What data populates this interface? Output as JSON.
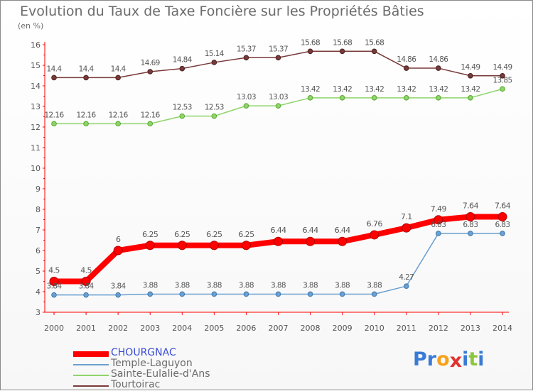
{
  "title": "Evolution du Taux de Taxe Foncière sur les Propriétés Bâties",
  "unit_label": "(en %)",
  "logo": {
    "text": "Proxiti",
    "letters": [
      "P",
      "r",
      "o",
      "x",
      "i",
      "t",
      "i"
    ],
    "colors": [
      "#3a7bd5",
      "#3a7bd5",
      "#f7a21b",
      "#e0322f",
      "#3a7bd5",
      "#8cc63f",
      "#3a7bd5"
    ]
  },
  "chart_data": {
    "type": "line",
    "title": "Evolution du Taux de Taxe Foncière sur les Propriétés Bâties",
    "ylabel": "(en %)",
    "xlabel": "",
    "x": [
      2000,
      2001,
      2002,
      2003,
      2004,
      2005,
      2006,
      2007,
      2008,
      2009,
      2010,
      2011,
      2012,
      2013,
      2014
    ],
    "x_tick_labels": [
      "2000",
      "2001",
      "2002",
      "2003",
      "2004",
      "2005",
      "2006",
      "2007",
      "2008",
      "2009",
      "2010",
      "2011",
      "2012",
      "2013",
      "2014"
    ],
    "ylim": [
      3,
      16
    ],
    "y_ticks": [
      3,
      4,
      5,
      6,
      7,
      8,
      9,
      10,
      11,
      12,
      13,
      14,
      15,
      16
    ],
    "y_tick_labels": [
      "3",
      "4",
      "5",
      "6",
      "7",
      "8",
      "9",
      "10",
      "11",
      "12",
      "13",
      "14",
      "15",
      "16"
    ],
    "grid": false,
    "legend_position": "bottom-left",
    "series": [
      {
        "name": "CHOURGNAC",
        "color": "#ff0000",
        "values": [
          4.5,
          4.5,
          6,
          6.25,
          6.25,
          6.25,
          6.25,
          6.44,
          6.44,
          6.44,
          6.76,
          7.1,
          7.49,
          7.64,
          7.64
        ],
        "labels": [
          "4.5",
          "4.5",
          "6",
          "6.25",
          "6.25",
          "6.25",
          "6.25",
          "6.44",
          "6.44",
          "6.44",
          "6.76",
          "7.1",
          "7.49",
          "7.64",
          "7.64"
        ]
      },
      {
        "name": "Temple-Laguyon",
        "color": "#6a9fd0",
        "values": [
          3.84,
          3.84,
          3.84,
          3.88,
          3.88,
          3.88,
          3.88,
          3.88,
          3.88,
          3.88,
          3.88,
          4.27,
          6.83,
          6.83,
          6.83
        ],
        "labels": [
          "3.84",
          "3.84",
          "3.84",
          "3.88",
          "3.88",
          "3.88",
          "3.88",
          "3.88",
          "3.88",
          "3.88",
          "3.88",
          "4.27",
          "6.83",
          "6.83",
          "6.83"
        ]
      },
      {
        "name": "Sainte-Eulalie-d'Ans",
        "color": "#8fd46b",
        "values": [
          12.16,
          12.16,
          12.16,
          12.16,
          12.53,
          12.53,
          13.03,
          13.03,
          13.42,
          13.42,
          13.42,
          13.42,
          13.42,
          13.42,
          13.85
        ],
        "labels": [
          "12.16",
          "12.16",
          "12.16",
          "12.16",
          "12.53",
          "12.53",
          "13.03",
          "13.03",
          "13.42",
          "13.42",
          "13.42",
          "13.42",
          "13.42",
          "13.42",
          "13.85"
        ]
      },
      {
        "name": "Tourtoirac",
        "color": "#7a3a3a",
        "values": [
          14.4,
          14.4,
          14.4,
          14.69,
          14.84,
          15.14,
          15.37,
          15.37,
          15.68,
          15.68,
          15.68,
          14.86,
          14.86,
          14.49,
          14.49
        ],
        "labels": [
          "14.4",
          "14.4",
          "14.4",
          "14.69",
          "14.84",
          "15.14",
          "15.37",
          "15.37",
          "15.68",
          "15.68",
          "15.68",
          "14.86",
          "14.86",
          "14.49",
          "14.49"
        ]
      }
    ]
  }
}
